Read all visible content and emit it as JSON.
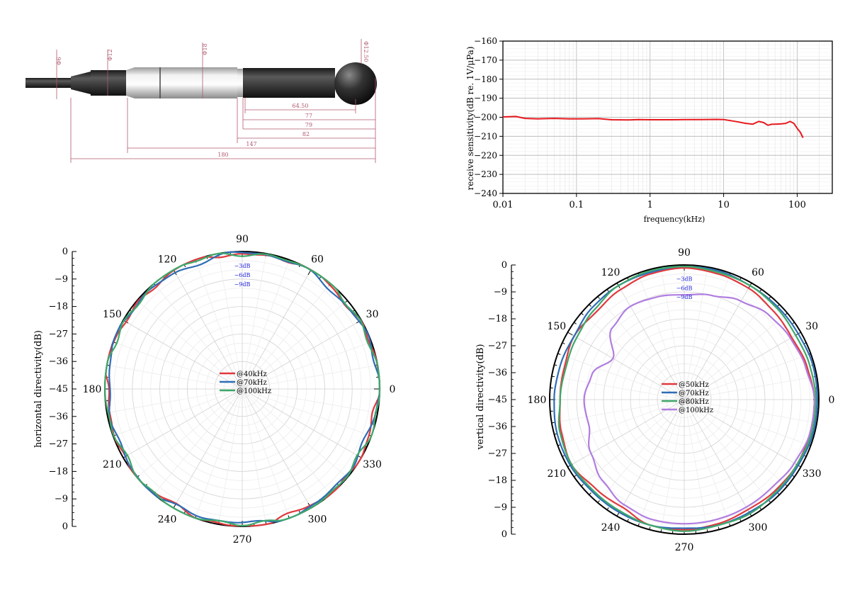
{
  "drawing": {
    "dimensions": [
      "Φ6",
      "Φ12",
      "Φ18",
      "Φ12.50",
      "64.50",
      "77",
      "79",
      "82",
      "147",
      "180"
    ],
    "dim_color": "#b05a6e"
  },
  "chart_data": [
    {
      "type": "line",
      "xscale": "log",
      "xlabel": "frequency(kHz)",
      "ylabel": "receive sensitivity(dB re. 1V/μPa)",
      "xlim": [
        0.01,
        300
      ],
      "ylim": [
        -240,
        -160
      ],
      "x_ticks": [
        {
          "value": 0.01,
          "label": "0.01"
        },
        {
          "value": 0.1,
          "label": "0.1"
        },
        {
          "value": 1,
          "label": "1"
        },
        {
          "value": 10,
          "label": "10"
        },
        {
          "value": 100,
          "label": "100"
        }
      ],
      "y_ticks": [
        -160,
        -170,
        -180,
        -190,
        -200,
        -210,
        -220,
        -230,
        -240
      ],
      "grid": true,
      "series": [
        {
          "color": "#e8191f",
          "x": [
            0.01,
            0.015,
            0.02,
            0.03,
            0.05,
            0.08,
            0.12,
            0.2,
            0.3,
            0.5,
            0.7,
            1,
            2,
            3,
            5,
            8,
            10,
            15,
            20,
            25,
            30,
            35,
            40,
            45,
            50,
            60,
            70,
            80,
            90,
            100,
            110,
            120
          ],
          "y": [
            -199.8,
            -199.6,
            -200.6,
            -200.8,
            -200.6,
            -200.8,
            -200.8,
            -200.7,
            -201.3,
            -201.4,
            -201.2,
            -201.3,
            -201.3,
            -201.2,
            -201.2,
            -201.1,
            -201.2,
            -202.3,
            -203.2,
            -203.6,
            -202.2,
            -202.8,
            -204.2,
            -203.7,
            -203.6,
            -203.5,
            -203.2,
            -202.2,
            -203.2,
            -205.8,
            -207.8,
            -210.8
          ]
        }
      ]
    },
    {
      "type": "polar",
      "ylabel": "horizontal directivity(dB)",
      "r_ticks": [
        0,
        -9,
        -18,
        -27,
        -36,
        -45,
        -36,
        -27,
        -18,
        -9,
        0
      ],
      "r_range_db": [
        -45,
        0
      ],
      "inner_labels": [
        "-3dB",
        "-6dB",
        "-9dB"
      ],
      "angle_labels": [
        "0",
        "30",
        "60",
        "90",
        "120",
        "150",
        "180",
        "210",
        "240",
        "270",
        "300",
        "330"
      ],
      "legend_position": "center",
      "series": [
        {
          "name": "@40kHz",
          "color": "#e0393e",
          "base_db": -0.5,
          "wobble": [
            [
              7,
              0.6,
              0.3
            ],
            [
              13,
              0.5,
              1.2
            ],
            [
              23,
              0.3,
              2.1
            ]
          ]
        },
        {
          "name": "@70kHz",
          "color": "#2f6db5",
          "base_db": -0.8,
          "wobble": [
            [
              5,
              0.6,
              0.9
            ],
            [
              11,
              0.5,
              2.4
            ],
            [
              19,
              0.3,
              0.4
            ]
          ]
        },
        {
          "name": "@100kHz",
          "color": "#3ea86a",
          "base_db": -0.4,
          "wobble": [
            [
              6,
              0.5,
              1.7
            ],
            [
              15,
              0.4,
              0.2
            ],
            [
              21,
              0.3,
              2.9
            ]
          ]
        }
      ]
    },
    {
      "type": "polar",
      "ylabel": "vertical directivity(dB)",
      "r_ticks": [
        0,
        -9,
        -18,
        -27,
        -36,
        -45,
        -36,
        -27,
        -18,
        -9,
        0
      ],
      "r_range_db": [
        -45,
        0
      ],
      "inner_labels": [
        "-3dB",
        "-6dB",
        "-9dB"
      ],
      "angle_labels": [
        "0",
        "30",
        "60",
        "90",
        "120",
        "150",
        "180",
        "210",
        "240",
        "270",
        "300",
        "330"
      ],
      "legend_position": "center",
      "series": [
        {
          "name": "@50kHz",
          "color": "#e0393e",
          "angles": [
            0,
            15,
            30,
            45,
            60,
            75,
            90,
            105,
            120,
            135,
            150,
            165,
            180,
            195,
            210,
            225,
            240,
            255,
            270,
            285,
            300,
            315,
            330,
            345,
            360
          ],
          "db": [
            -1.5,
            -2.5,
            -3.5,
            -3.0,
            -2.0,
            -1.5,
            -1.0,
            -1.5,
            -2.5,
            -3.5,
            -2.5,
            -3.5,
            -3.5,
            -2.5,
            -1.5,
            -3.0,
            -3.5,
            -1.5,
            -1.5,
            -2.0,
            -2.5,
            -2.0,
            -1.5,
            -1.5,
            -1.5
          ]
        },
        {
          "name": "@70kHz",
          "color": "#2f6db5",
          "angles": [
            0,
            15,
            30,
            45,
            60,
            75,
            90,
            105,
            120,
            135,
            150,
            165,
            180,
            195,
            210,
            225,
            240,
            255,
            270,
            285,
            300,
            315,
            330,
            345,
            360
          ],
          "db": [
            -0.5,
            -0.5,
            -1.0,
            -1.0,
            -1.0,
            -0.5,
            -0.5,
            -1.0,
            -1.0,
            -1.5,
            -2.5,
            -2.0,
            -1.5,
            -1.0,
            -1.0,
            -1.5,
            -1.5,
            -1.5,
            -2.0,
            -1.5,
            -1.5,
            -1.0,
            -1.0,
            -0.5,
            -0.5
          ]
        },
        {
          "name": "@80kHz",
          "color": "#3ea86a",
          "angles": [
            0,
            15,
            30,
            45,
            60,
            75,
            90,
            105,
            120,
            135,
            150,
            165,
            180,
            195,
            210,
            225,
            240,
            255,
            270,
            285,
            300,
            315,
            330,
            345,
            360
          ],
          "db": [
            -1.0,
            -1.5,
            -2.0,
            -1.5,
            -1.0,
            -1.0,
            -0.5,
            -0.5,
            -1.0,
            -2.5,
            -3.5,
            -4.0,
            -3.5,
            -2.0,
            -1.5,
            -2.0,
            -2.0,
            -1.5,
            -1.0,
            -1.5,
            -1.0,
            -1.5,
            -1.5,
            -1.0,
            -1.0
          ]
        },
        {
          "name": "@100kHz",
          "color": "#b07de0",
          "angles": [
            0,
            15,
            30,
            45,
            60,
            75,
            90,
            105,
            120,
            135,
            150,
            165,
            180,
            195,
            210,
            225,
            240,
            255,
            270,
            285,
            300,
            315,
            330,
            345,
            360
          ],
          "db": [
            -1.5,
            -3.0,
            -4.0,
            -5.0,
            -7.0,
            -9.0,
            -10.0,
            -9.5,
            -9.0,
            -11.0,
            -17.5,
            -13.0,
            -11.5,
            -12.0,
            -9.0,
            -6.5,
            -4.5,
            -3.5,
            -3.5,
            -3.5,
            -3.5,
            -3.5,
            -2.5,
            -1.5,
            -1.5
          ]
        }
      ]
    }
  ]
}
